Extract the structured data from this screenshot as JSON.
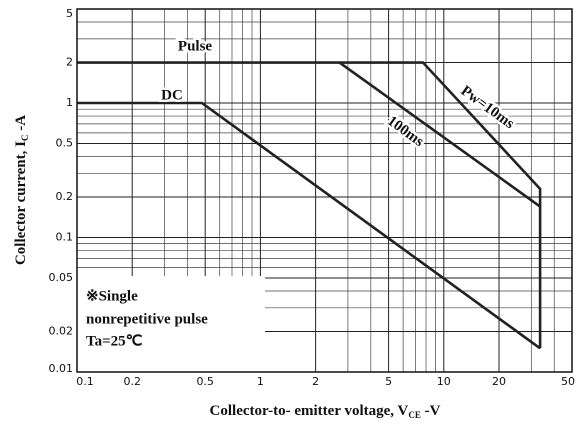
{
  "chart_data": {
    "type": "line",
    "x_label": [
      "Collector-to- emitter voltage, V",
      "CE",
      " -V"
    ],
    "y_label": [
      "Collector current, I",
      "C",
      " -A"
    ],
    "log_x": true,
    "log_y": true,
    "grid": true,
    "color": "#222222",
    "xlim": [
      0.1,
      50
    ],
    "ylim": [
      0.01,
      5
    ],
    "xticks": [
      0.1,
      0.2,
      0.5,
      1,
      2,
      5,
      10,
      20,
      50
    ],
    "yticks": [
      0.01,
      0.02,
      0.05,
      0.1,
      0.2,
      0.5,
      1,
      2,
      5
    ],
    "xminor_ticks": [
      0.3,
      0.4,
      0.6,
      0.7,
      0.8,
      0.9,
      3,
      4,
      6,
      7,
      8,
      9,
      30,
      40
    ],
    "yminor_ticks": [
      0.03,
      0.04,
      0.06,
      0.07,
      0.08,
      0.09,
      0.3,
      0.4,
      0.6,
      0.7,
      0.8,
      0.9,
      3,
      4
    ],
    "annotation": "Pulse",
    "note": [
      "※Single",
      "nonrepetitive pulse",
      "Ta=25℃"
    ],
    "series": [
      {
        "name": "Pw=10ms",
        "x": [
          0.1,
          7.7,
          33.5,
          33.5
        ],
        "values": [
          2,
          2,
          0.23,
          0.015
        ]
      },
      {
        "name": "100ms",
        "x": [
          2.7,
          33.5
        ],
        "values": [
          2,
          0.17
        ]
      },
      {
        "name": "DC",
        "x": [
          0.1,
          0.48,
          33.5
        ],
        "values": [
          1,
          1,
          0.015
        ]
      }
    ]
  }
}
